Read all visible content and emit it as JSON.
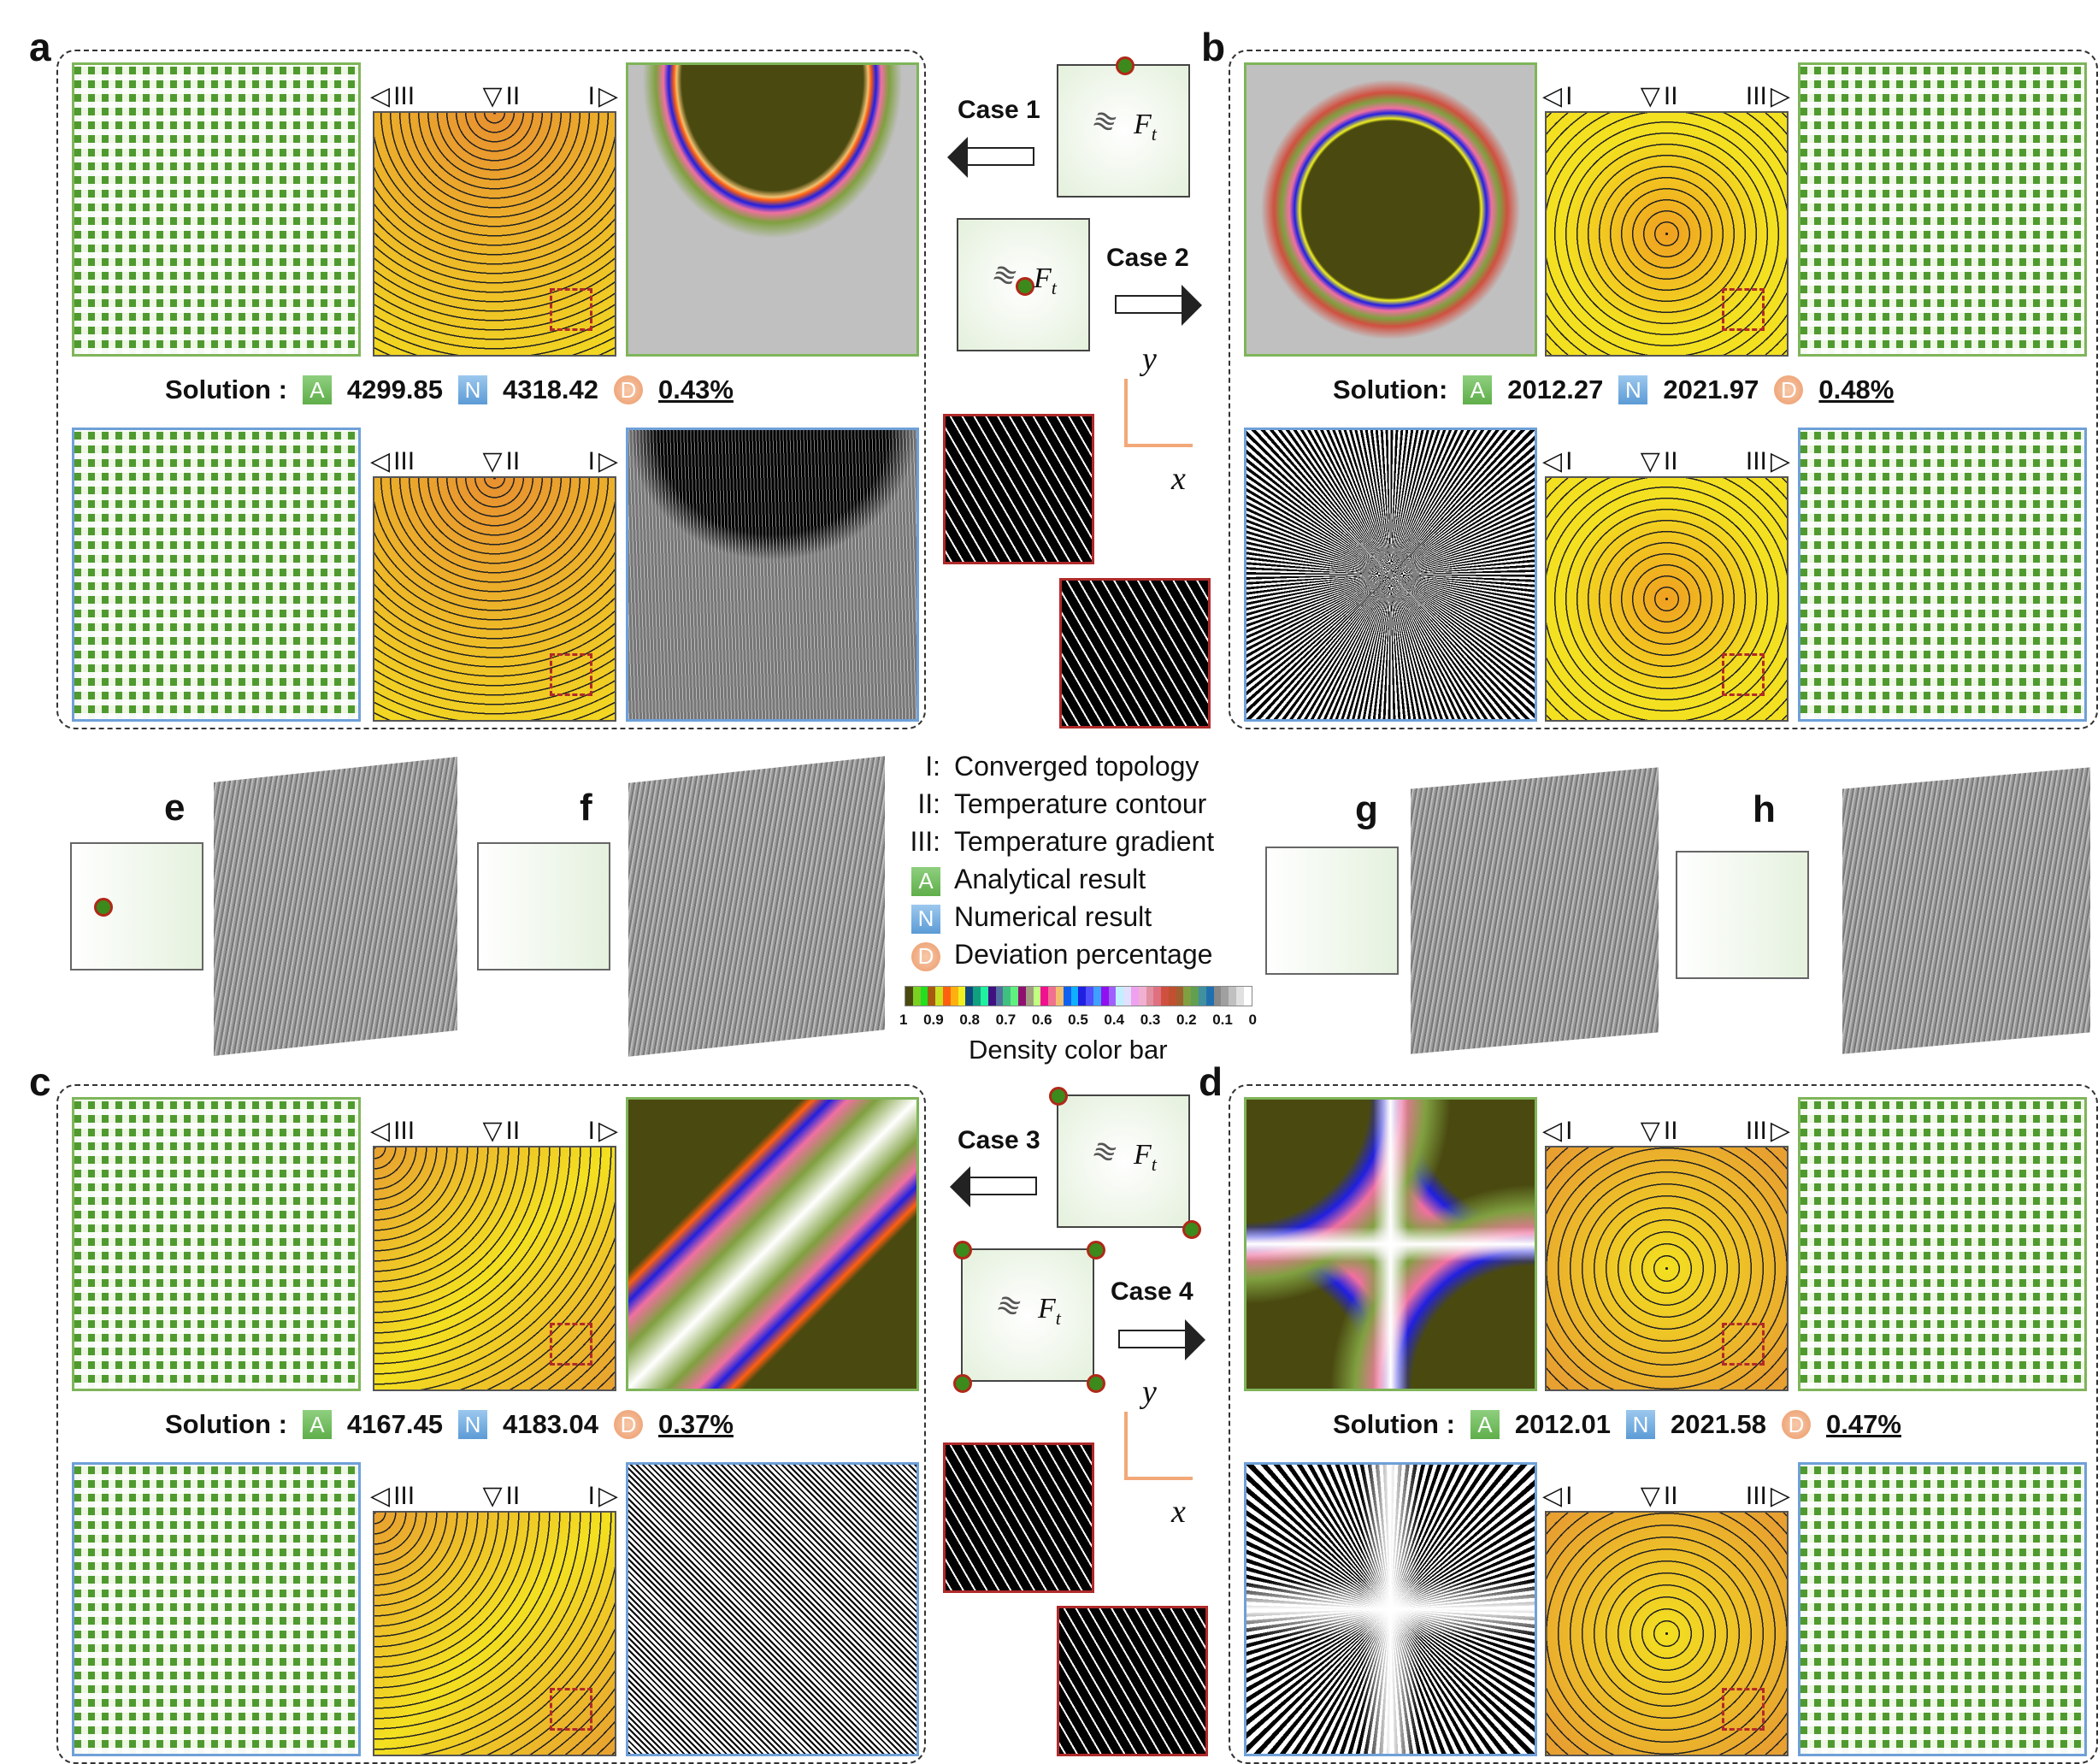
{
  "panels": [
    {
      "letter": "a",
      "layout": "a",
      "order": "ltr",
      "labels": [
        "III",
        "II",
        "I"
      ],
      "solution_label": "Solution :",
      "analytical": "4299.85",
      "numerical": "4318.42",
      "deviation": "0.43%"
    },
    {
      "letter": "b",
      "layout": "b",
      "order": "rtl",
      "labels": [
        "I",
        "II",
        "III"
      ],
      "solution_label": "Solution:",
      "analytical": "2012.27",
      "numerical": "2021.97",
      "deviation": "0.48%"
    },
    {
      "letter": "c",
      "layout": "c",
      "order": "ltr",
      "labels": [
        "III",
        "II",
        "I"
      ],
      "solution_label": "Solution :",
      "analytical": "4167.45",
      "numerical": "4183.04",
      "deviation": "0.37%"
    },
    {
      "letter": "d",
      "layout": "d",
      "order": "rtl",
      "labels": [
        "I",
        "II",
        "III"
      ],
      "solution_label": "Solution :",
      "analytical": "2012.01",
      "numerical": "2021.58",
      "deviation": "0.47%"
    }
  ],
  "badges": {
    "analytical": "A",
    "numerical": "N",
    "deviation": "D"
  },
  "cases": [
    {
      "label": "Case 1",
      "arrow": "left"
    },
    {
      "label": "Case 2",
      "arrow": "right"
    },
    {
      "label": "Case 3",
      "arrow": "left"
    },
    {
      "label": "Case 4",
      "arrow": "right"
    }
  ],
  "force_symbol": {
    "main": "F",
    "sub": "t"
  },
  "axes": {
    "x": "x",
    "y": "y"
  },
  "views": [
    {
      "letter": "e"
    },
    {
      "letter": "f"
    },
    {
      "letter": "g"
    },
    {
      "letter": "h"
    }
  ],
  "legend": {
    "items": [
      {
        "key": "I:",
        "text": "Converged topology"
      },
      {
        "key": "II:",
        "text": "Temperature contour"
      },
      {
        "key": "III:",
        "text": "Temperature gradient"
      },
      {
        "key": "A",
        "text": "Analytical result"
      },
      {
        "key": "N",
        "text": "Numerical result"
      },
      {
        "key": "D",
        "text": "Deviation percentage"
      }
    ],
    "colorbar_title": "Density color bar",
    "colorbar_ticks": [
      "1",
      "0.9",
      "0.8",
      "0.7",
      "0.6",
      "0.5",
      "0.4",
      "0.3",
      "0.2",
      "0.1",
      "0"
    ],
    "colorbar_colors": [
      "#4a4a10",
      "#7ad020",
      "#20e020",
      "#a85a10",
      "#c8e020",
      "#ff6010",
      "#ffb010",
      "#f0f020",
      "#104880",
      "#10a080",
      "#20f0a0",
      "#401080",
      "#5070a0",
      "#40c080",
      "#60f080",
      "#901070",
      "#a0a080",
      "#c0ff80",
      "#f01090",
      "#f07090",
      "#f0c070",
      "#1060f0",
      "#10b0ff",
      "#2020e0",
      "#5050ff",
      "#40a0ff",
      "#9010f0",
      "#a060ff",
      "#c0f0ff",
      "#e0e0ff",
      "#f0a0f0",
      "#f0b0d0",
      "#e090a0",
      "#e07080",
      "#d05040",
      "#c05030",
      "#a06030",
      "#80a040",
      "#60a050",
      "#4090a0",
      "#2070b0",
      "#888888",
      "#a0a0a0",
      "#c0c0c0",
      "#e0e0e0",
      "#ffffff"
    ]
  }
}
